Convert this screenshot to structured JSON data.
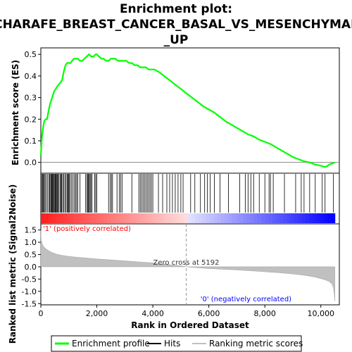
{
  "title_lines": [
    "Enrichment plot:",
    "CHARAFE_BREAST_CANCER_BASAL_VS_MESENCHYMAL",
    "_UP"
  ],
  "chart_data": [
    {
      "type": "line",
      "ylabel": "Enrichment score (ES)",
      "xlim": [
        0,
        10660
      ],
      "ylim": [
        -0.05,
        0.53
      ],
      "y_ticks": [
        0.0,
        0.1,
        0.2,
        0.3,
        0.4,
        0.5
      ],
      "y_tick_labels": [
        "0.0",
        "0.1",
        "0.2",
        "0.3",
        "0.4",
        "0.5"
      ],
      "grid": false,
      "series": [
        {
          "name": "Enrichment profile",
          "color": "#00ff00",
          "x": [
            0,
            40,
            80,
            120,
            170,
            220,
            280,
            330,
            380,
            430,
            480,
            530,
            580,
            640,
            700,
            760,
            820,
            880,
            940,
            1000,
            1060,
            1120,
            1180,
            1250,
            1320,
            1400,
            1480,
            1560,
            1640,
            1720,
            1800,
            1880,
            1960,
            2000,
            2080,
            2160,
            2240,
            2330,
            2420,
            2500,
            2580,
            2660,
            2750,
            2850,
            2950,
            3050,
            3150,
            3250,
            3350,
            3450,
            3550,
            3650,
            3750,
            3850,
            3950,
            4050,
            4200,
            4400,
            4600,
            4800,
            5000,
            5192,
            5400,
            5600,
            5800,
            6000,
            6200,
            6400,
            6600,
            6800,
            7000,
            7200,
            7400,
            7600,
            7800,
            8000,
            8200,
            8400,
            8600,
            8800,
            9000,
            9200,
            9400,
            9600,
            9800,
            10000,
            10100,
            10200,
            10300,
            10400,
            10500
          ],
          "y": [
            0.03,
            0.12,
            0.16,
            0.19,
            0.2,
            0.2,
            0.24,
            0.27,
            0.29,
            0.31,
            0.33,
            0.34,
            0.35,
            0.36,
            0.37,
            0.38,
            0.42,
            0.45,
            0.46,
            0.46,
            0.46,
            0.47,
            0.48,
            0.48,
            0.48,
            0.47,
            0.47,
            0.48,
            0.49,
            0.5,
            0.49,
            0.49,
            0.5,
            0.5,
            0.49,
            0.48,
            0.48,
            0.47,
            0.47,
            0.48,
            0.48,
            0.48,
            0.47,
            0.47,
            0.47,
            0.47,
            0.46,
            0.46,
            0.45,
            0.45,
            0.44,
            0.44,
            0.44,
            0.43,
            0.43,
            0.43,
            0.42,
            0.4,
            0.38,
            0.36,
            0.34,
            0.32,
            0.3,
            0.28,
            0.26,
            0.245,
            0.23,
            0.21,
            0.19,
            0.175,
            0.16,
            0.145,
            0.13,
            0.12,
            0.105,
            0.095,
            0.085,
            0.07,
            0.055,
            0.04,
            0.025,
            0.015,
            0.005,
            0.0,
            -0.01,
            -0.015,
            -0.02,
            -0.02,
            -0.01,
            -0.005,
            0.0
          ]
        }
      ]
    },
    {
      "type": "scatter",
      "description_series": "Hits",
      "xlim": [
        0,
        10660
      ],
      "hits_x": [
        30,
        60,
        90,
        120,
        150,
        190,
        240,
        290,
        320,
        350,
        380,
        400,
        420,
        450,
        470,
        500,
        520,
        540,
        560,
        590,
        620,
        650,
        700,
        720,
        740,
        780,
        820,
        860,
        900,
        940,
        960,
        990,
        1010,
        1050,
        1100,
        1150,
        1200,
        1240,
        1280,
        1320,
        1400,
        1600,
        1650,
        1680,
        1700,
        1730,
        1760,
        1790,
        1830,
        1920,
        1960,
        2000,
        2420,
        2480,
        2520,
        2560,
        2720,
        2800,
        2850,
        2900,
        3250,
        3500,
        3550,
        3600,
        3650,
        3700,
        3750,
        3800,
        3850,
        3900,
        3950,
        4000,
        4200,
        4350,
        4500,
        4600,
        4700,
        4800,
        4900,
        5000,
        5080,
        5350,
        5500,
        5700,
        5850,
        5950,
        6050,
        6200,
        6400,
        6700,
        7100,
        7300,
        7400,
        7500,
        7600,
        7800,
        8000,
        8150,
        8200,
        8300,
        8700,
        9100,
        9300,
        9400,
        9600,
        9800,
        10050,
        10150,
        10450
      ]
    },
    {
      "type": "area",
      "ylabel": "Ranked list metric (Signal2Noise)",
      "xlabel": "Rank in Ordered Dataset",
      "xlim": [
        0,
        10660
      ],
      "ylim": [
        -1.55,
        1.75
      ],
      "x_ticks": [
        0,
        2000,
        4000,
        6000,
        8000,
        10000
      ],
      "x_tick_labels": [
        "0",
        "2,000",
        "4,000",
        "6,000",
        "8,000",
        "10,000"
      ],
      "y_ticks": [
        -1.5,
        -1.0,
        -0.5,
        0.0,
        0.5,
        1.0,
        1.5
      ],
      "y_tick_labels": [
        "-1.5",
        "-1.0",
        "-0.5",
        "0.0",
        "0.5",
        "1.0",
        "1.5"
      ],
      "series": [
        {
          "name": "Ranking metric scores",
          "color": "#c0c0c0",
          "x": [
            0,
            10,
            30,
            60,
            100,
            150,
            220,
            300,
            400,
            550,
            700,
            900,
            1200,
            1600,
            2000,
            2500,
            3000,
            3500,
            4000,
            4500,
            5000,
            5192,
            5500,
            6000,
            6500,
            7000,
            7500,
            8000,
            8500,
            9000,
            9300,
            9600,
            9800,
            10000,
            10150,
            10300,
            10400,
            10450,
            10480,
            10500
          ],
          "y": [
            1.5,
            1.15,
            1.0,
            0.9,
            0.82,
            0.76,
            0.7,
            0.64,
            0.58,
            0.52,
            0.48,
            0.44,
            0.4,
            0.36,
            0.32,
            0.28,
            0.24,
            0.2,
            0.16,
            0.1,
            0.04,
            0.0,
            -0.03,
            -0.07,
            -0.1,
            -0.13,
            -0.16,
            -0.2,
            -0.24,
            -0.29,
            -0.33,
            -0.38,
            -0.42,
            -0.48,
            -0.53,
            -0.6,
            -0.7,
            -0.85,
            -1.1,
            -1.4
          ]
        }
      ],
      "annotations": {
        "zero_cross": "Zero cross at 5192",
        "zero_cross_x": 5192,
        "positive": "'1' (positively correlated)",
        "negative": "'0' (negatively correlated)",
        "positive_color": "#ff0000",
        "negative_color": "#0000ff"
      }
    }
  ],
  "legend": {
    "items": [
      {
        "label": "Enrichment profile",
        "color": "#00ff00"
      },
      {
        "label": "Hits",
        "color": "#000000"
      },
      {
        "label": "Ranking metric scores",
        "color": "#c0c0c0"
      }
    ]
  }
}
